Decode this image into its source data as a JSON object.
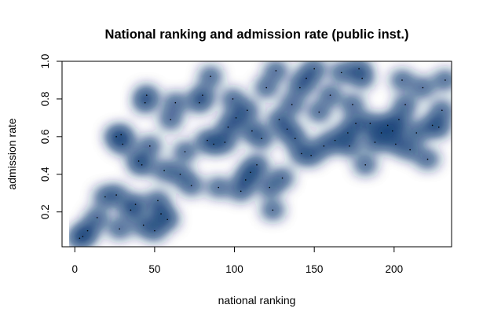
{
  "chart_data": {
    "type": "scatter",
    "title": "National ranking and admission rate (public inst.)",
    "xlabel": "national ranking",
    "ylabel": "admission rate",
    "xlim": [
      -8,
      236
    ],
    "ylim": [
      0.015,
      1.0
    ],
    "xticks": [
      0,
      50,
      100,
      150,
      200
    ],
    "yticks": [
      0.2,
      0.4,
      0.6,
      0.8,
      1.0
    ],
    "xtick_labels": [
      "0",
      "50",
      "100",
      "150",
      "200"
    ],
    "ytick_labels": [
      "0.2",
      "0.4",
      "0.6",
      "0.8",
      "1.0"
    ],
    "style": "smoothScatter (kernel density)",
    "colors": {
      "low": "#ffffff",
      "high": "#08306b"
    },
    "points": [
      [
        3,
        0.06
      ],
      [
        5,
        0.07
      ],
      [
        8,
        0.1
      ],
      [
        14,
        0.17
      ],
      [
        19,
        0.28
      ],
      [
        26,
        0.29
      ],
      [
        28,
        0.11
      ],
      [
        26,
        0.6
      ],
      [
        29,
        0.61
      ],
      [
        30,
        0.56
      ],
      [
        35,
        0.21
      ],
      [
        38,
        0.24
      ],
      [
        40,
        0.47
      ],
      [
        42,
        0.45
      ],
      [
        43,
        0.13
      ],
      [
        44,
        0.78
      ],
      [
        45,
        0.82
      ],
      [
        47,
        0.55
      ],
      [
        50,
        0.1
      ],
      [
        52,
        0.26
      ],
      [
        54,
        0.19
      ],
      [
        56,
        0.42
      ],
      [
        58,
        0.16
      ],
      [
        60,
        0.69
      ],
      [
        63,
        0.78
      ],
      [
        66,
        0.4
      ],
      [
        69,
        0.52
      ],
      [
        73,
        0.34
      ],
      [
        78,
        0.78
      ],
      [
        80,
        0.82
      ],
      [
        83,
        0.58
      ],
      [
        87,
        0.56
      ],
      [
        85,
        0.92
      ],
      [
        90,
        0.33
      ],
      [
        94,
        0.57
      ],
      [
        96,
        0.65
      ],
      [
        99,
        0.8
      ],
      [
        101,
        0.7
      ],
      [
        104,
        0.31
      ],
      [
        107,
        0.37
      ],
      [
        108,
        0.74
      ],
      [
        110,
        0.41
      ],
      [
        111,
        0.63
      ],
      [
        114,
        0.45
      ],
      [
        117,
        0.59
      ],
      [
        120,
        0.86
      ],
      [
        122,
        0.33
      ],
      [
        124,
        0.21
      ],
      [
        126,
        0.95
      ],
      [
        128,
        0.69
      ],
      [
        130,
        0.38
      ],
      [
        133,
        0.64
      ],
      [
        136,
        0.77
      ],
      [
        138,
        0.59
      ],
      [
        141,
        0.86
      ],
      [
        142,
        0.51
      ],
      [
        145,
        0.91
      ],
      [
        148,
        0.5
      ],
      [
        150,
        0.96
      ],
      [
        153,
        0.73
      ],
      [
        156,
        0.55
      ],
      [
        160,
        0.82
      ],
      [
        163,
        0.58
      ],
      [
        167,
        0.94
      ],
      [
        171,
        0.62
      ],
      [
        172,
        0.55
      ],
      [
        174,
        0.77
      ],
      [
        176,
        0.67
      ],
      [
        178,
        0.96
      ],
      [
        180,
        0.91
      ],
      [
        182,
        0.45
      ],
      [
        185,
        0.67
      ],
      [
        188,
        0.57
      ],
      [
        192,
        0.62
      ],
      [
        196,
        0.66
      ],
      [
        199,
        0.63
      ],
      [
        201,
        0.56
      ],
      [
        203,
        0.69
      ],
      [
        205,
        0.9
      ],
      [
        207,
        0.77
      ],
      [
        210,
        0.53
      ],
      [
        214,
        0.62
      ],
      [
        218,
        0.86
      ],
      [
        221,
        0.48
      ],
      [
        224,
        0.66
      ],
      [
        228,
        0.65
      ],
      [
        230,
        0.74
      ],
      [
        232,
        0.9
      ]
    ]
  }
}
